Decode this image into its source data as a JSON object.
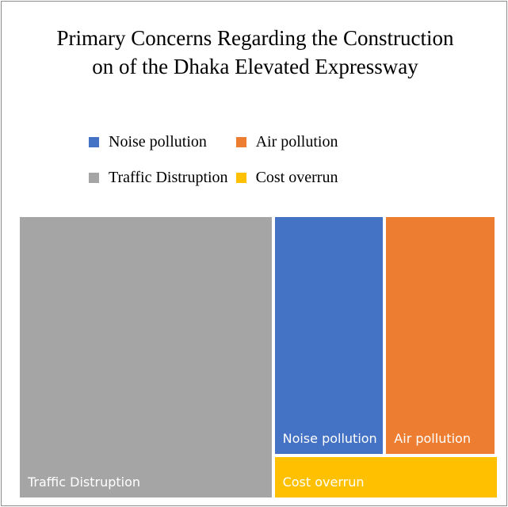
{
  "chart_data": {
    "type": "treemap",
    "title": "Primary Concerns Regarding the Construction on of the Dhaka Elevated Expressway",
    "categories": [
      "Traffic Distruption",
      "Noise pollution",
      "Air pollution",
      "Cost overrun"
    ],
    "values": [
      40,
      15,
      15,
      5
    ],
    "colors": [
      "#a5a5a5",
      "#4472c4",
      "#ed7d31",
      "#ffc000"
    ],
    "legend": [
      "Noise pollution",
      "Air pollution",
      "Traffic Distruption",
      "Cost overrun"
    ]
  }
}
